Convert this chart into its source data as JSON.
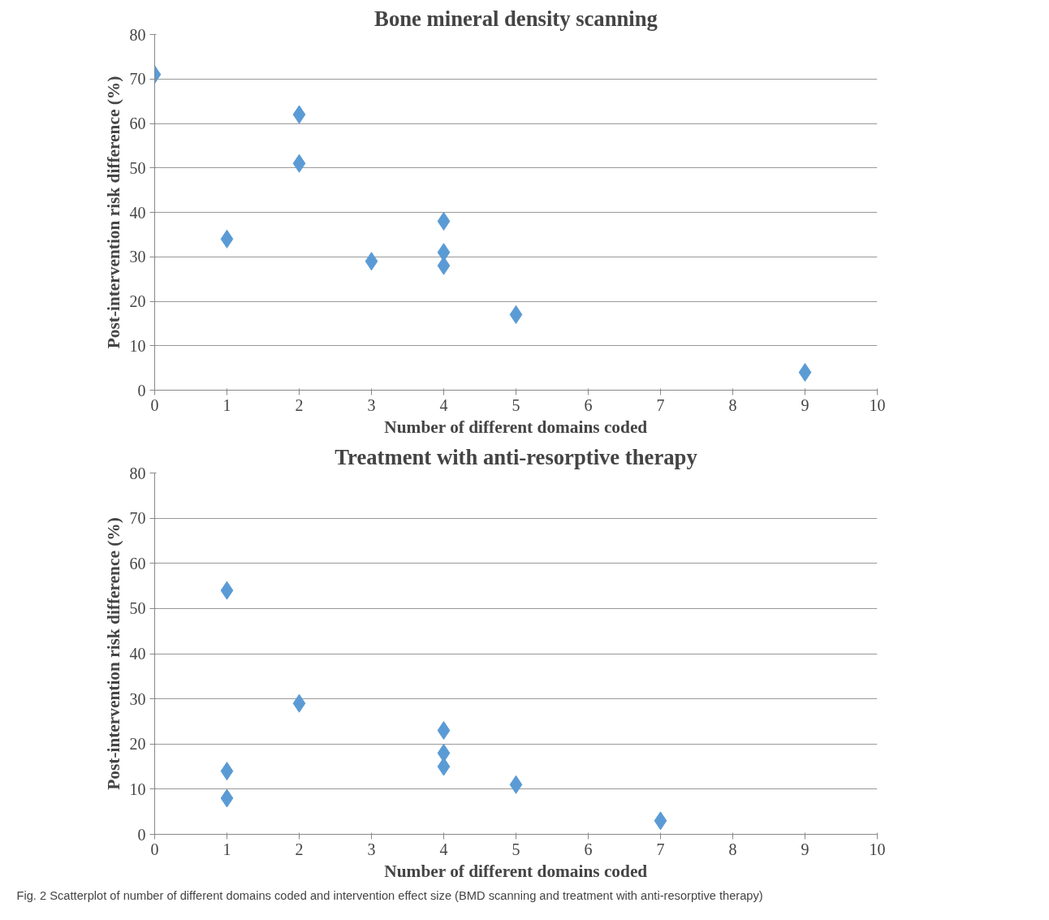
{
  "chart_data": [
    {
      "type": "scatter",
      "title": "Bone mineral density scanning",
      "xlabel": "Number of different domains coded",
      "ylabel": "Post-intervention risk difference (%)",
      "x": [
        0,
        2,
        2,
        1,
        3,
        4,
        4,
        4,
        5,
        9
      ],
      "values": [
        71,
        62,
        51,
        34,
        29,
        38,
        31,
        28,
        17,
        4
      ],
      "color": "#5b9bd5",
      "marker": "diamond",
      "xlim": [
        0,
        10
      ],
      "xticks": [
        0,
        1,
        2,
        3,
        4,
        5,
        6,
        7,
        8,
        9,
        10
      ],
      "ylim": [
        0,
        80
      ],
      "yticks": [
        0,
        10,
        20,
        30,
        40,
        50,
        60,
        70,
        80
      ],
      "grid": "y"
    },
    {
      "type": "scatter",
      "title": "Treatment with anti-resorptive therapy",
      "xlabel": "Number of different domains coded",
      "ylabel": "Post-intervention risk difference (%)",
      "x": [
        1,
        1,
        1,
        2,
        4,
        4,
        4,
        5,
        7
      ],
      "values": [
        54,
        14,
        8,
        29,
        23,
        18,
        15,
        11,
        3
      ],
      "color": "#5b9bd5",
      "marker": "diamond",
      "xlim": [
        0,
        10
      ],
      "xticks": [
        0,
        1,
        2,
        3,
        4,
        5,
        6,
        7,
        8,
        9,
        10
      ],
      "ylim": [
        0,
        80
      ],
      "yticks": [
        0,
        10,
        20,
        30,
        40,
        50,
        60,
        70,
        80
      ],
      "grid": "y",
      "annotations": [
        "Fig. 2 Scatterplot of number of different domains coded and intervention effect size (BMD scanning and treatment with anti-resorptive therapy)"
      ]
    }
  ]
}
